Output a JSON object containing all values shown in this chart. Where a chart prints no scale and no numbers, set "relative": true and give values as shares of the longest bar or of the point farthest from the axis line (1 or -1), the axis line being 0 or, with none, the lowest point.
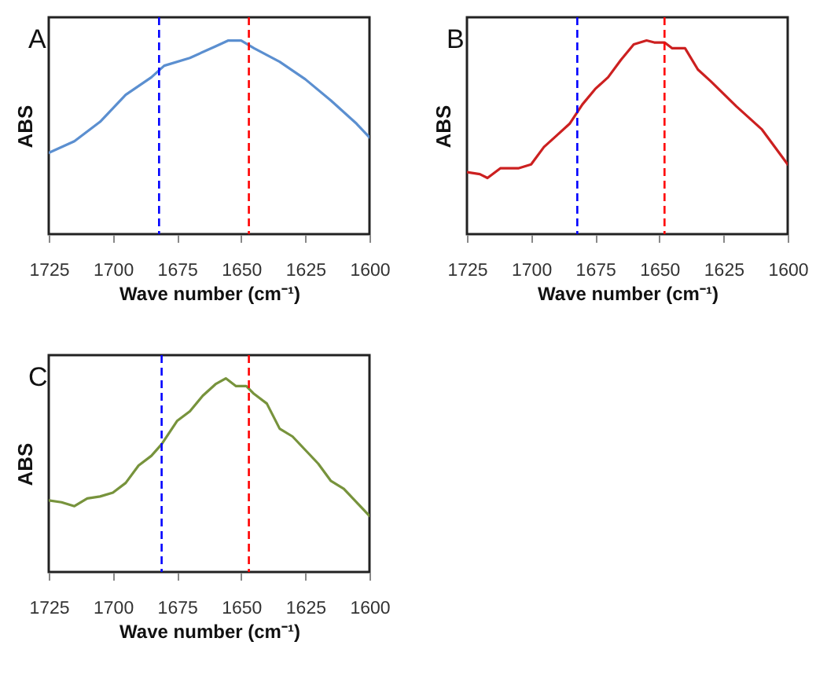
{
  "chart_data": [
    {
      "type": "line",
      "title": "A",
      "xlabel": "Wave number (cm⁻¹)",
      "ylabel": "ABS",
      "relative": true,
      "xlim": [
        1725,
        1600
      ],
      "xticks": [
        1725,
        1700,
        1675,
        1650,
        1625,
        1600
      ],
      "tick_labels": "x",
      "grid": false,
      "line_style": "solid",
      "series": [
        {
          "color": "#5b8fd0",
          "x": [
            1725,
            1715,
            1705,
            1695,
            1685,
            1680,
            1670,
            1660,
            1655,
            1650,
            1645,
            1635,
            1625,
            1615,
            1605,
            1600
          ],
          "values": [
            0.42,
            0.48,
            0.58,
            0.72,
            0.81,
            0.87,
            0.91,
            0.97,
            1.0,
            1.0,
            0.96,
            0.89,
            0.8,
            0.69,
            0.57,
            0.5
          ]
        }
      ],
      "ref_lines": [
        {
          "axis": "x",
          "value": 1682,
          "color": "#0000ff",
          "line_style": "dashed"
        },
        {
          "axis": "x",
          "value": 1647,
          "color": "#ff0000",
          "line_style": "dashed"
        }
      ]
    },
    {
      "type": "line",
      "title": "B",
      "xlabel": "Wave number (cm⁻¹)",
      "ylabel": "ABS",
      "relative": true,
      "xlim": [
        1725,
        1600
      ],
      "xticks": [
        1725,
        1700,
        1675,
        1650,
        1625,
        1600
      ],
      "tick_labels": "x",
      "grid": false,
      "line_style": "solid",
      "series": [
        {
          "color": "#cc2020",
          "x": [
            1725,
            1720,
            1717,
            1712,
            1705,
            1700,
            1695,
            1690,
            1685,
            1680,
            1675,
            1670,
            1665,
            1660,
            1655,
            1652,
            1648,
            1645,
            1640,
            1635,
            1630,
            1620,
            1610,
            1600
          ],
          "values": [
            0.32,
            0.31,
            0.29,
            0.34,
            0.34,
            0.36,
            0.45,
            0.51,
            0.57,
            0.67,
            0.75,
            0.81,
            0.9,
            0.98,
            1.0,
            0.99,
            0.99,
            0.96,
            0.96,
            0.85,
            0.79,
            0.66,
            0.54,
            0.36
          ]
        }
      ],
      "ref_lines": [
        {
          "axis": "x",
          "value": 1682,
          "color": "#0000ff",
          "line_style": "dashed"
        },
        {
          "axis": "x",
          "value": 1648,
          "color": "#ff0000",
          "line_style": "dashed"
        }
      ]
    },
    {
      "type": "line",
      "title": "C",
      "xlabel": "Wave number (cm⁻¹)",
      "ylabel": "ABS",
      "relative": true,
      "xlim": [
        1725,
        1600
      ],
      "xticks": [
        1725,
        1700,
        1675,
        1650,
        1625,
        1600
      ],
      "tick_labels": "x",
      "grid": false,
      "line_style": "solid",
      "series": [
        {
          "color": "#77933c",
          "x": [
            1725,
            1720,
            1715,
            1710,
            1705,
            1700,
            1695,
            1690,
            1685,
            1681,
            1675,
            1670,
            1665,
            1660,
            1656,
            1652,
            1648,
            1645,
            1640,
            1635,
            1630,
            1625,
            1620,
            1615,
            1610,
            1605,
            1600
          ],
          "values": [
            0.37,
            0.36,
            0.34,
            0.38,
            0.39,
            0.41,
            0.46,
            0.55,
            0.6,
            0.66,
            0.78,
            0.83,
            0.91,
            0.97,
            1.0,
            0.96,
            0.96,
            0.92,
            0.87,
            0.74,
            0.7,
            0.63,
            0.56,
            0.47,
            0.43,
            0.36,
            0.29
          ]
        }
      ],
      "ref_lines": [
        {
          "axis": "x",
          "value": 1681,
          "color": "#0000ff",
          "line_style": "dashed"
        },
        {
          "axis": "x",
          "value": 1647,
          "color": "#ff0000",
          "line_style": "dashed"
        }
      ]
    }
  ]
}
